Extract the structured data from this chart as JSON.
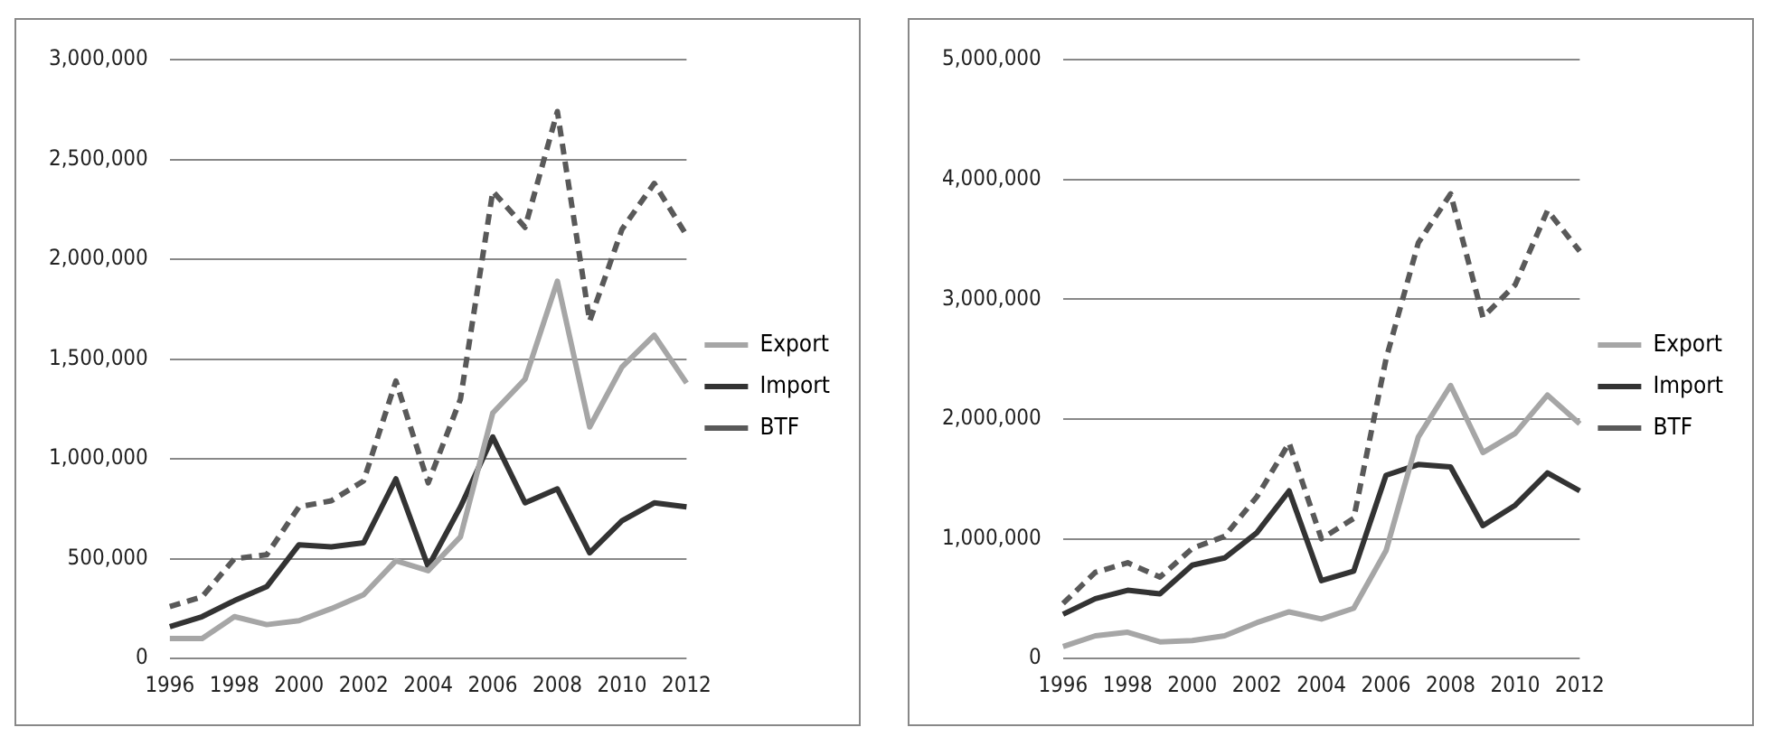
{
  "chart_data": [
    {
      "type": "line",
      "categories": [
        "1996",
        null,
        "1998",
        null,
        "2000",
        null,
        "2002",
        null,
        "2004",
        null,
        "2006",
        null,
        "2008",
        null,
        "2010",
        null,
        "2012"
      ],
      "series": [
        {
          "name": "Export",
          "color": "#a6a6a6",
          "line_style": "solid",
          "values": [
            100000,
            100000,
            210000,
            170000,
            190000,
            250000,
            320000,
            490000,
            440000,
            610000,
            1230000,
            1400000,
            1890000,
            1160000,
            1460000,
            1620000,
            1380000
          ]
        },
        {
          "name": "Import",
          "color": "#333333",
          "line_style": "solid",
          "values": [
            160000,
            210000,
            290000,
            360000,
            570000,
            560000,
            580000,
            900000,
            460000,
            760000,
            1110000,
            780000,
            850000,
            530000,
            690000,
            780000,
            760000
          ]
        },
        {
          "name": "BTF",
          "color": "#595959",
          "line_style": "dashed",
          "values": [
            260000,
            310000,
            500000,
            520000,
            760000,
            790000,
            890000,
            1390000,
            880000,
            1300000,
            2340000,
            2160000,
            2740000,
            1690000,
            2150000,
            2380000,
            2120000
          ]
        }
      ],
      "ylim": [
        0,
        3000000
      ],
      "yticks": [
        0,
        {
          "value": 500000,
          "label": "500,000"
        },
        {
          "value": 1000000,
          "label": "1,000,000"
        },
        {
          "value": 1500000,
          "label": "1,500,000"
        },
        {
          "value": 2000000,
          "label": "2,000,000"
        },
        {
          "value": 2500000,
          "label": "2,500,000"
        },
        {
          "value": 3000000,
          "label": "3,000,000"
        }
      ],
      "grid": "y",
      "legend": "right",
      "marker": "none"
    },
    {
      "type": "line",
      "categories": [
        "1996",
        null,
        "1998",
        null,
        "2000",
        null,
        "2002",
        null,
        "2004",
        null,
        "2006",
        null,
        "2008",
        null,
        "2010",
        null,
        "2012"
      ],
      "series": [
        {
          "name": "Export",
          "color": "#a6a6a6",
          "line_style": "solid",
          "values": [
            100000,
            190000,
            220000,
            140000,
            150000,
            190000,
            300000,
            390000,
            330000,
            420000,
            900000,
            1850000,
            2280000,
            1720000,
            1880000,
            2200000,
            1960000
          ]
        },
        {
          "name": "Import",
          "color": "#333333",
          "line_style": "solid",
          "values": [
            370000,
            500000,
            570000,
            540000,
            780000,
            840000,
            1050000,
            1400000,
            650000,
            730000,
            1530000,
            1620000,
            1600000,
            1110000,
            1280000,
            1550000,
            1400000
          ]
        },
        {
          "name": "BTF",
          "color": "#595959",
          "line_style": "dashed",
          "values": [
            460000,
            720000,
            800000,
            680000,
            920000,
            1020000,
            1350000,
            1800000,
            1000000,
            1170000,
            2500000,
            3470000,
            3880000,
            2850000,
            3120000,
            3740000,
            3400000
          ]
        }
      ],
      "ylim": [
        0,
        5000000
      ],
      "yticks": [
        0,
        {
          "value": 1000000,
          "label": "1,000,000"
        },
        {
          "value": 2000000,
          "label": "2,000,000"
        },
        {
          "value": 3000000,
          "label": "3,000,000"
        },
        {
          "value": 4000000,
          "label": "4,000,000"
        },
        {
          "value": 5000000,
          "label": "5,000,000"
        }
      ],
      "grid": "y",
      "legend": "right",
      "marker": "none"
    }
  ]
}
